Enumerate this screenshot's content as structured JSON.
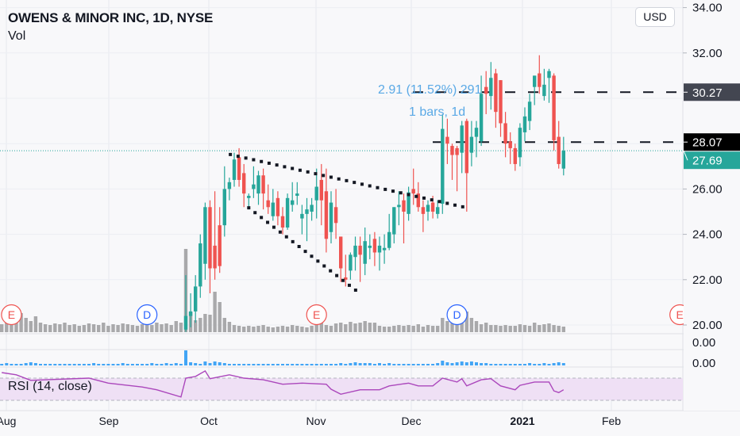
{
  "header": {
    "title": "OWENS & MINOR INC, 1D, NYSE",
    "volume_label": "Vol"
  },
  "currency_button": "USD",
  "rsi": {
    "label": "RSI (14, close)",
    "upper_band": 70,
    "lower_band": 30,
    "points_by_bar": [
      [
        -38,
        80
      ],
      [
        -35,
        76
      ],
      [
        -32,
        66
      ],
      [
        -20,
        70
      ],
      [
        -16,
        61
      ],
      [
        -9,
        54
      ],
      [
        -6,
        49
      ],
      [
        -1,
        36
      ],
      [
        0,
        70
      ],
      [
        2,
        73
      ],
      [
        4,
        83
      ],
      [
        5,
        69
      ],
      [
        9,
        76
      ],
      [
        12,
        70
      ],
      [
        16,
        67
      ],
      [
        20,
        59
      ],
      [
        24,
        61
      ],
      [
        29,
        59
      ],
      [
        30,
        50
      ],
      [
        32,
        41
      ],
      [
        36,
        49
      ],
      [
        40,
        49
      ],
      [
        42,
        56
      ],
      [
        46,
        61
      ],
      [
        48,
        56
      ],
      [
        51,
        56
      ],
      [
        53,
        70
      ],
      [
        56,
        63
      ],
      [
        57,
        69
      ],
      [
        58,
        56
      ],
      [
        61,
        67
      ],
      [
        63,
        69
      ],
      [
        65,
        56
      ],
      [
        68,
        49
      ],
      [
        69,
        57
      ],
      [
        72,
        63
      ],
      [
        75,
        63
      ],
      [
        76,
        47
      ],
      [
        77,
        44
      ],
      [
        78,
        49
      ]
    ]
  },
  "measure": {
    "line1": "2.91 (11.52%) 291",
    "line2": "1 bars, 1d"
  },
  "pane_values": [
    "0.00",
    "0.00"
  ],
  "colors": {
    "up": "#26a69a",
    "down": "#ef5350",
    "volume": "#a9a9ab",
    "rsi_line": "#ab47bc",
    "rsi_band": "#efe0f5",
    "measure_text": "#5aa9e6",
    "insider": "#42a5f5",
    "earnings": "#ef5350",
    "dividend": "#2962ff"
  },
  "chart_data": {
    "type": "candlestick",
    "symbol": "OWENS & MINOR INC",
    "interval": "1D",
    "exchange": "NYSE",
    "y_ticks": [
      "34.00",
      "32.00",
      "26.00",
      "24.00",
      "22.00",
      "20.00"
    ],
    "ylim": [
      20,
      34
    ],
    "x_ticks": [
      {
        "label": "Aug"
      },
      {
        "label": "Sep"
      },
      {
        "label": "Oct"
      },
      {
        "label": "Nov"
      },
      {
        "label": "Dec"
      },
      {
        "label": "2021",
        "bold": true
      },
      {
        "label": "Feb"
      }
    ],
    "price_tags": [
      {
        "value": "30.27",
        "kind": "line"
      },
      {
        "value": "28.07",
        "kind": "line"
      },
      {
        "value": "27.69",
        "kind": "last"
      }
    ],
    "horizontal_lines": [
      30.27,
      28.07
    ],
    "last_price": 27.69,
    "ohlc": [
      [
        19.8,
        22.2,
        19.7,
        20.4
      ],
      [
        20.4,
        21.4,
        19.9,
        20.6
      ],
      [
        20.6,
        22.2,
        20.1,
        21.7
      ],
      [
        21.7,
        24.0,
        21.2,
        23.6
      ],
      [
        22.7,
        25.4,
        22.0,
        25.2
      ],
      [
        25.2,
        25.5,
        21.4,
        22.5
      ],
      [
        23.5,
        25.9,
        22.0,
        22.5
      ],
      [
        24.4,
        25.2,
        22.3,
        22.6
      ],
      [
        24.4,
        27.0,
        23.9,
        26.0
      ],
      [
        26.0,
        26.5,
        25.5,
        26.3
      ],
      [
        26.4,
        27.6,
        26.1,
        27.3
      ],
      [
        27.4,
        27.8,
        26.1,
        26.4
      ],
      [
        26.7,
        27.1,
        25.2,
        25.8
      ],
      [
        25.6,
        25.8,
        25.1,
        25.7
      ],
      [
        26.0,
        27.0,
        25.6,
        26.2
      ],
      [
        25.8,
        26.8,
        25.3,
        26.6
      ],
      [
        26.6,
        26.9,
        25.1,
        25.8
      ],
      [
        25.5,
        26.2,
        24.9,
        25.2
      ],
      [
        24.8,
        26.0,
        24.6,
        25.4
      ],
      [
        25.6,
        25.9,
        24.4,
        24.8
      ],
      [
        24.8,
        25.2,
        24.0,
        24.3
      ],
      [
        24.3,
        25.8,
        24.2,
        25.6
      ],
      [
        25.3,
        26.3,
        25.0,
        25.5
      ],
      [
        25.7,
        26.3,
        25.3,
        25.8
      ],
      [
        24.7,
        25.3,
        24.0,
        24.9
      ],
      [
        24.9,
        25.6,
        23.7,
        25.1
      ],
      [
        25.0,
        25.6,
        24.6,
        25.3
      ],
      [
        25.5,
        26.9,
        24.7,
        26.1
      ],
      [
        26.4,
        27.1,
        24.4,
        25.5
      ],
      [
        25.9,
        26.9,
        23.2,
        23.8
      ],
      [
        24.1,
        25.9,
        23.6,
        25.4
      ],
      [
        25.2,
        26.0,
        23.8,
        24.5
      ],
      [
        23.9,
        23.9,
        21.9,
        22.5
      ],
      [
        22.1,
        23.1,
        21.7,
        22.0
      ],
      [
        22.4,
        23.2,
        22.0,
        23.1
      ],
      [
        23.0,
        23.9,
        22.4,
        23.5
      ],
      [
        23.5,
        23.9,
        21.9,
        23.1
      ],
      [
        22.7,
        24.3,
        22.2,
        23.7
      ],
      [
        23.4,
        24.0,
        22.9,
        23.5
      ],
      [
        23.8,
        24.1,
        22.6,
        23.2
      ],
      [
        23.2,
        23.9,
        22.4,
        23.5
      ],
      [
        23.3,
        24.0,
        22.7,
        23.4
      ],
      [
        23.4,
        24.9,
        23.3,
        24.1
      ],
      [
        24.0,
        25.2,
        23.6,
        25.2
      ],
      [
        25.2,
        25.9,
        24.4,
        25.3
      ],
      [
        25.5,
        25.8,
        23.6,
        25.0
      ],
      [
        24.9,
        26.1,
        24.6,
        25.85
      ],
      [
        26.0,
        26.9,
        25.3,
        25.8
      ],
      [
        25.8,
        26.3,
        25.0,
        25.2
      ],
      [
        25.2,
        25.5,
        24.1,
        24.9
      ],
      [
        25.0,
        25.5,
        24.6,
        25.3
      ],
      [
        25.4,
        25.7,
        24.7,
        25.0
      ],
      [
        24.9,
        25.5,
        24.7,
        25.2
      ],
      [
        25.35,
        29.3,
        24.9,
        28.65
      ],
      [
        28.3,
        29.1,
        27.1,
        28.0
      ],
      [
        27.9,
        28.0,
        26.4,
        27.5
      ],
      [
        27.8,
        27.9,
        25.9,
        27.5
      ],
      [
        27.6,
        29.0,
        26.7,
        28.8
      ],
      [
        29.0,
        29.1,
        25.0,
        26.7
      ],
      [
        27.6,
        29.0,
        27.0,
        28.3
      ],
      [
        28.3,
        29.0,
        27.4,
        28.7
      ],
      [
        28.1,
        31.0,
        27.9,
        30.2
      ],
      [
        30.5,
        31.2,
        29.3,
        30.2
      ],
      [
        30.1,
        31.6,
        29.5,
        30.9
      ],
      [
        31.1,
        31.3,
        28.7,
        29.4
      ],
      [
        30.8,
        30.8,
        28.3,
        28.9
      ],
      [
        28.9,
        29.4,
        27.4,
        28.0
      ],
      [
        28.1,
        28.5,
        27.1,
        27.8
      ],
      [
        27.8,
        28.0,
        26.8,
        27.1
      ],
      [
        27.4,
        28.9,
        27.0,
        28.7
      ],
      [
        28.5,
        29.6,
        28.1,
        29.2
      ],
      [
        29.0,
        30.2,
        28.6,
        29.85
      ],
      [
        30.5,
        31.0,
        29.7,
        31.0
      ],
      [
        31.1,
        31.9,
        30.2,
        30.5
      ],
      [
        30.1,
        31.3,
        29.9,
        30.6
      ],
      [
        30.9,
        31.3,
        29.8,
        31.2
      ],
      [
        31.0,
        31.1,
        27.7,
        28.15
      ],
      [
        28.3,
        29.0,
        26.9,
        27.1
      ],
      [
        26.9,
        28.3,
        26.6,
        27.69
      ]
    ],
    "volume_before": [
      10,
      12,
      22,
      16,
      24,
      18,
      14,
      20,
      12,
      10,
      9,
      11,
      10,
      12,
      9,
      10,
      8,
      9,
      11,
      10,
      9,
      12,
      8,
      10,
      9,
      11,
      10,
      9,
      8,
      10,
      11,
      9,
      12,
      10,
      11,
      9,
      14,
      12
    ],
    "volume": [
      105,
      25,
      15,
      18,
      23,
      22,
      51,
      38,
      18,
      13,
      9,
      8,
      7,
      8,
      7,
      8,
      9,
      7,
      6,
      7,
      8,
      7,
      9,
      8,
      7,
      6,
      8,
      10,
      12,
      9,
      8,
      11,
      12,
      10,
      13,
      11,
      12,
      14,
      12,
      12,
      8,
      7,
      7,
      8,
      9,
      8,
      9,
      8,
      10,
      7,
      9,
      8,
      8,
      18,
      14,
      16,
      12,
      22,
      26,
      18,
      14,
      10,
      12,
      9,
      9,
      8,
      9,
      8,
      8,
      10,
      9,
      8,
      12,
      9,
      10,
      11,
      9,
      8,
      7
    ],
    "insider_before": [
      1,
      2,
      1,
      1,
      1,
      2,
      3,
      2,
      1,
      1,
      1,
      1,
      1,
      1,
      1,
      1,
      1,
      1,
      1,
      2,
      1,
      1,
      1,
      1,
      1,
      2,
      1,
      1,
      1,
      1,
      1,
      2,
      1,
      1,
      2,
      1,
      2,
      1
    ],
    "insider": [
      18,
      3,
      2,
      1,
      4,
      2,
      4,
      3,
      2,
      1,
      1,
      1,
      1,
      1,
      1,
      1,
      1,
      1,
      1,
      1,
      1,
      1,
      1,
      1,
      1,
      1,
      1,
      1,
      1,
      1,
      1,
      1,
      2,
      1,
      2,
      3,
      2,
      2,
      2,
      1,
      2,
      1,
      2,
      1,
      1,
      1,
      1,
      1,
      1,
      1,
      1,
      1,
      2,
      5,
      3,
      2,
      3,
      4,
      3,
      4,
      3,
      2,
      2,
      1,
      1,
      1,
      1,
      1,
      1,
      1,
      1,
      2,
      1,
      1,
      2,
      1,
      2,
      3,
      2
    ],
    "pattern_lines": [
      {
        "from": [
          9.2,
          27.52
        ],
        "to": [
          58.7,
          25.14
        ]
      },
      {
        "from": [
          13,
          25.17
        ],
        "to": [
          35.9,
          21.4
        ]
      }
    ],
    "events": [
      {
        "type": "E",
        "bar": -36
      },
      {
        "type": "D",
        "bar": -8
      },
      {
        "type": "E",
        "bar": 27
      },
      {
        "type": "D",
        "bar": 56
      },
      {
        "type": "E",
        "bar": 102
      }
    ]
  }
}
